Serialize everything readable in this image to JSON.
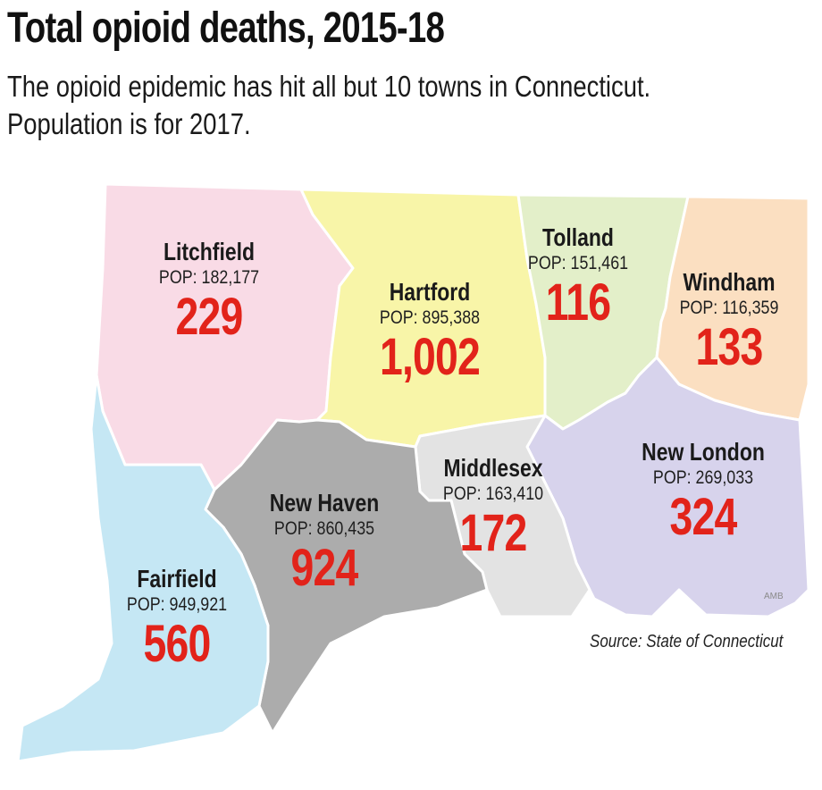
{
  "title": "Total opioid deaths, 2015-18",
  "subtitle_lines": [
    "The opioid epidemic has hit all but 10 towns in Connecticut.",
    "Population is for 2017."
  ],
  "counties": [
    {
      "id": "litchfield",
      "name": "Litchfield",
      "pop": "POP: 182,177",
      "deaths": "229",
      "color": "#f9dbe6"
    },
    {
      "id": "hartford",
      "name": "Hartford",
      "pop": "POP: 895,388",
      "deaths": "1,002",
      "color": "#f8f5a8"
    },
    {
      "id": "tolland",
      "name": "Tolland",
      "pop": "POP: 151,461",
      "deaths": "116",
      "color": "#e3efc9"
    },
    {
      "id": "windham",
      "name": "Windham",
      "pop": "POP: 116,359",
      "deaths": "133",
      "color": "#fbdfc1"
    },
    {
      "id": "new-london",
      "name": "New London",
      "pop": "POP: 269,033",
      "deaths": "324",
      "color": "#d7d3ec"
    },
    {
      "id": "middlesex",
      "name": "Middlesex",
      "pop": "POP: 163,410",
      "deaths": "172",
      "color": "#e3e3e3"
    },
    {
      "id": "new-haven",
      "name": "New Haven",
      "pop": "POP: 860,435",
      "deaths": "924",
      "color": "#acacac"
    },
    {
      "id": "fairfield",
      "name": "Fairfield",
      "pop": "POP: 949,921",
      "deaths": "560",
      "color": "#c5e7f4"
    }
  ],
  "source": "Source:  State of Connecticut",
  "credit": "AMB",
  "colors": {
    "deaths": "#e2231a",
    "border": "#ffffff"
  }
}
